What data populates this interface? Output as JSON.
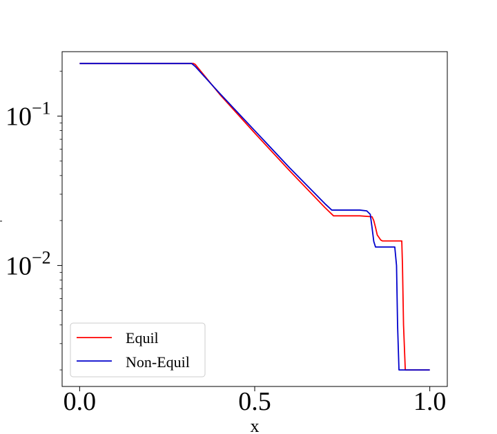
{
  "chart_data": {
    "type": "line",
    "title": "",
    "xlabel": "x",
    "ylabel": "",
    "yscale": "log",
    "xlim": [
      -0.05,
      1.05
    ],
    "ylim": [
      0.00155,
      0.27
    ],
    "x_ticks": [
      {
        "value": 0.0,
        "label": "0.0"
      },
      {
        "value": 0.5,
        "label": "0.5"
      },
      {
        "value": 1.0,
        "label": "1.0"
      }
    ],
    "y_ticks": [
      {
        "value": 0.1,
        "base": "10",
        "exp": "−1"
      },
      {
        "value": 0.01,
        "base": "10",
        "exp": "−2"
      }
    ],
    "grid": false,
    "legend_position": "lower-left",
    "series": [
      {
        "name": "Equil",
        "color": "#ff0000",
        "x": [
          0.0,
          0.325,
          0.33,
          0.4,
          0.5,
          0.6,
          0.7,
          0.725,
          0.8,
          0.835,
          0.84,
          0.845,
          0.85,
          0.86,
          0.865,
          0.87,
          0.92,
          0.922,
          0.925,
          0.93,
          1.0
        ],
        "y": [
          0.225,
          0.225,
          0.222,
          0.14,
          0.077,
          0.043,
          0.0245,
          0.0215,
          0.0215,
          0.0212,
          0.02,
          0.018,
          0.016,
          0.0148,
          0.0146,
          0.0146,
          0.0146,
          0.01,
          0.004,
          0.002,
          0.002
        ]
      },
      {
        "name": "Non-Equil",
        "color": "#0000cc",
        "x": [
          0.0,
          0.32,
          0.33,
          0.4,
          0.5,
          0.6,
          0.7,
          0.72,
          0.8,
          0.82,
          0.83,
          0.835,
          0.84,
          0.845,
          0.85,
          0.9,
          0.905,
          0.908,
          0.912,
          1.0
        ],
        "y": [
          0.225,
          0.225,
          0.215,
          0.142,
          0.08,
          0.045,
          0.026,
          0.0235,
          0.0235,
          0.0232,
          0.022,
          0.018,
          0.0145,
          0.0133,
          0.0133,
          0.0133,
          0.01,
          0.004,
          0.002,
          0.002
        ]
      }
    ]
  }
}
